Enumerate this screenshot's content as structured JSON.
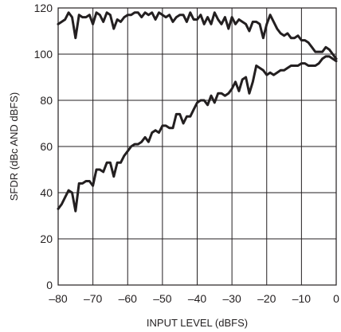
{
  "chart_data": {
    "type": "line",
    "xlabel": "INPUT LEVEL (dBFS)",
    "ylabel": "SFDR (dBc AND dBFS)",
    "xlim": [
      -80,
      0
    ],
    "ylim": [
      0,
      120
    ],
    "xticks": [
      "–80",
      "–70",
      "–60",
      "–50",
      "–40",
      "–30",
      "–20",
      "–10",
      "0"
    ],
    "yticks": [
      "0",
      "20",
      "40",
      "60",
      "80",
      "100",
      "120"
    ],
    "grid": true,
    "series": [
      {
        "x": [
          -80,
          -79,
          -78,
          -77,
          -76,
          -75,
          -74,
          -73,
          -72,
          -71,
          -70,
          -69,
          -68,
          -67,
          -66,
          -65,
          -64,
          -63,
          -62,
          -61,
          -60,
          -59,
          -58,
          -57,
          -56,
          -55,
          -54,
          -53,
          -52,
          -51,
          -50,
          -49,
          -48,
          -47,
          -46,
          -45,
          -44,
          -43,
          -42,
          -41,
          -40,
          -39,
          -38,
          -37,
          -36,
          -35,
          -34,
          -33,
          -32,
          -31,
          -30,
          -29,
          -28,
          -27,
          -26,
          -25,
          -24,
          -23,
          -22,
          -21,
          -20,
          -19,
          -18,
          -17,
          -16,
          -15,
          -14,
          -13,
          -12,
          -11,
          -10,
          -9,
          -8,
          -7,
          -6,
          -5,
          -4,
          -3,
          -2,
          -1,
          0
        ],
        "values": [
          113,
          114,
          115,
          118,
          116,
          107,
          117,
          116,
          116,
          117,
          113,
          118,
          117,
          114,
          118,
          117,
          111,
          115,
          114,
          116,
          117,
          117,
          118,
          118,
          116,
          118,
          117,
          118,
          115,
          118,
          117,
          116,
          117,
          114,
          116,
          117,
          117,
          114,
          118,
          115,
          115,
          117,
          113,
          116,
          113,
          118,
          115,
          113,
          116,
          111,
          116,
          113,
          115,
          114,
          113,
          110,
          114,
          114,
          113,
          107,
          113,
          117,
          114,
          111,
          109,
          108,
          109,
          107,
          107,
          108,
          106,
          106,
          105,
          103,
          101,
          101,
          101,
          103,
          102,
          100,
          98
        ]
      },
      {
        "x": [
          -80,
          -79,
          -78,
          -77,
          -76,
          -75,
          -74,
          -73,
          -72,
          -71,
          -70,
          -69,
          -68,
          -67,
          -66,
          -65,
          -64,
          -63,
          -62,
          -61,
          -60,
          -59,
          -58,
          -57,
          -56,
          -55,
          -54,
          -53,
          -52,
          -51,
          -50,
          -49,
          -48,
          -47,
          -46,
          -45,
          -44,
          -43,
          -42,
          -41,
          -40,
          -39,
          -38,
          -37,
          -36,
          -35,
          -34,
          -33,
          -32,
          -31,
          -30,
          -29,
          -28,
          -27,
          -26,
          -25,
          -24,
          -23,
          -22,
          -21,
          -20,
          -19,
          -18,
          -17,
          -16,
          -15,
          -14,
          -13,
          -12,
          -11,
          -10,
          -9,
          -8,
          -7,
          -6,
          -5,
          -4,
          -3,
          -2,
          -1,
          0
        ],
        "values": [
          33,
          35,
          38,
          41,
          40,
          32,
          44,
          44,
          45,
          45,
          43,
          50,
          50,
          49,
          53,
          53,
          47,
          53,
          53,
          56,
          58,
          60,
          61,
          61,
          62,
          64,
          62,
          66,
          67,
          66,
          69,
          69,
          68,
          68,
          74,
          74,
          70,
          73,
          73,
          76,
          79,
          80,
          80,
          78,
          82,
          79,
          83,
          83,
          82,
          83,
          85,
          88,
          84,
          89,
          90,
          83,
          88,
          95,
          94,
          93,
          91,
          92,
          91,
          92,
          93,
          93,
          94,
          95,
          95,
          95,
          96,
          96,
          95,
          95,
          95,
          96,
          98,
          99,
          99,
          98,
          97
        ]
      }
    ]
  }
}
